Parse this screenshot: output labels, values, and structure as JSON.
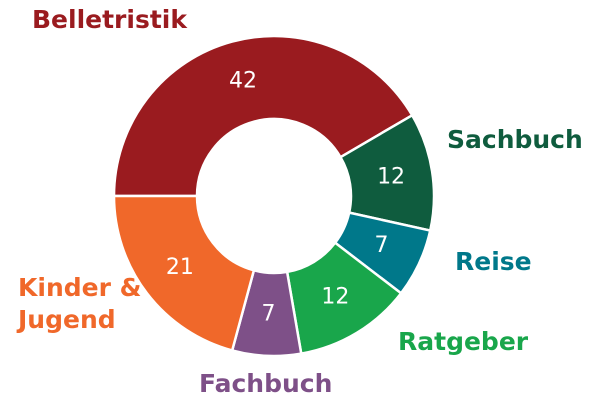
{
  "chart_data": {
    "type": "donut",
    "categories": [
      "Belletristik",
      "Sachbuch",
      "Reise",
      "Ratgeber",
      "Fachbuch",
      "Kinder & Jugend"
    ],
    "values": [
      42,
      12,
      7,
      12,
      7,
      21
    ],
    "colors": [
      "#9a1b1f",
      "#0f5c3e",
      "#00788a",
      "#19a64b",
      "#7e5088",
      "#f0682a"
    ]
  }
}
